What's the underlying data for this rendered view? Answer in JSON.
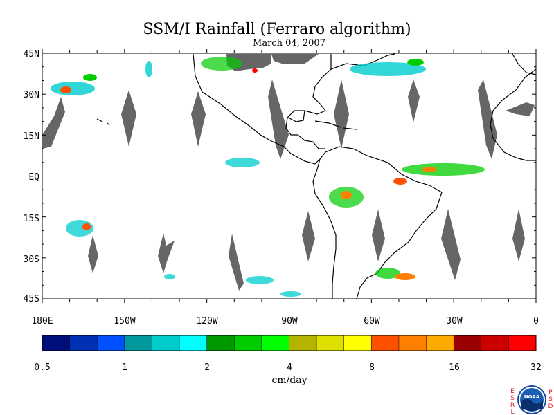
{
  "title": "SSM/I Rainfall (Ferraro algorithm)",
  "subtitle": "March 04, 2007",
  "map": {
    "lat_labels": [
      "45N",
      "30N",
      "15N",
      "EQ",
      "15S",
      "30S",
      "45S"
    ],
    "lon_labels": [
      "180E",
      "150W",
      "120W",
      "90W",
      "60W",
      "30W",
      "0"
    ]
  },
  "colorbar": {
    "colors": [
      "#000e7c",
      "#0030b4",
      "#0050ff",
      "#00999c",
      "#00cccc",
      "#00ffff",
      "#009900",
      "#00cc00",
      "#00ff00",
      "#b4b400",
      "#e0e000",
      "#ffff00",
      "#ff5000",
      "#ff8000",
      "#ffaa00",
      "#990000",
      "#cc0000",
      "#ff0000"
    ],
    "tick_labels": [
      "0.5",
      "1",
      "2",
      "4",
      "8",
      "16",
      "32"
    ],
    "unit": "cm/day"
  },
  "colors": {
    "land_outline": "#000000",
    "no_data": "#666666"
  },
  "logo": {
    "left_letters": [
      "E",
      "S",
      "R",
      "L"
    ],
    "right_letters": [
      "P",
      "S",
      "D"
    ],
    "center_text": "NOAA"
  }
}
